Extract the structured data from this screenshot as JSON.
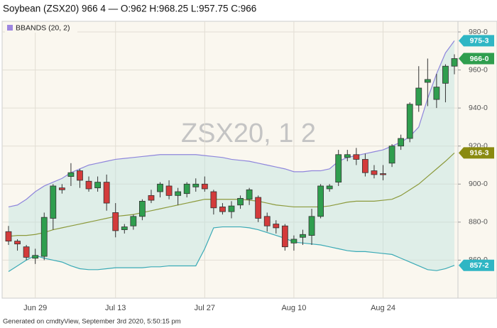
{
  "chart_data": {
    "type": "candlestick",
    "title": "Soybean (ZSX20) 966 4 — O:962 H:968.25 L:957.75 C:966",
    "watermark": "ZSX20, 1 2",
    "footer": "Generated on cmdtyView, September 3rd 2020, 5:50:15 pm",
    "categories": [
      null,
      null,
      null,
      "Jun 29",
      null,
      null,
      null,
      null,
      null,
      null,
      null,
      null,
      "Jul 13",
      null,
      null,
      null,
      null,
      null,
      null,
      null,
      null,
      null,
      "Jul 27",
      null,
      null,
      null,
      null,
      null,
      null,
      null,
      null,
      null,
      "Aug 10",
      null,
      null,
      null,
      null,
      null,
      null,
      null,
      null,
      null,
      "Aug 24",
      null,
      null,
      null,
      null,
      null,
      null,
      null,
      null
    ],
    "open": [
      875,
      870,
      867,
      861,
      862,
      882,
      898,
      904,
      907,
      901.5,
      898,
      901,
      885,
      876,
      878,
      883,
      894,
      896,
      899,
      894,
      895,
      898.5,
      900,
      896,
      888,
      885.5,
      889,
      892,
      893,
      883,
      879,
      878,
      869,
      872,
      873,
      883,
      897.5,
      901,
      914,
      915.5,
      913,
      907,
      905.5,
      911,
      920,
      924,
      941.5,
      953.5,
      944.5,
      953,
      962
    ],
    "high": [
      878,
      871,
      868,
      866,
      885,
      900,
      900,
      911,
      908,
      904,
      904,
      905,
      890,
      879,
      884,
      892,
      897,
      901,
      902,
      898,
      901,
      903,
      904,
      897,
      890,
      891,
      894,
      898,
      894,
      885,
      881,
      879,
      873,
      876,
      887,
      900,
      900,
      918,
      918,
      919,
      916,
      910,
      910,
      921,
      926,
      943,
      962,
      966,
      958,
      963,
      968.25
    ],
    "low": [
      868,
      865,
      860,
      858,
      860,
      876,
      895,
      899,
      898,
      896,
      896,
      886,
      872,
      874,
      876,
      881,
      890,
      893,
      892,
      889,
      893,
      896,
      896,
      884,
      884,
      882,
      887,
      889,
      880,
      875,
      874,
      865,
      865,
      868,
      868,
      882,
      896,
      899,
      912,
      910,
      904,
      903,
      902,
      909,
      918,
      922,
      938,
      941,
      940,
      943,
      957.75
    ],
    "close": [
      870,
      868.5,
      861.5,
      862.5,
      882.5,
      899,
      897,
      906,
      902,
      897.5,
      901,
      890,
      875.5,
      877.5,
      883,
      891,
      891.5,
      900,
      894,
      896,
      900,
      900,
      897.5,
      887.5,
      885.5,
      888.5,
      892.5,
      897,
      882,
      878,
      877,
      867,
      871,
      873.5,
      883,
      899,
      899,
      915.5,
      915.5,
      913,
      906,
      905,
      905,
      920,
      924,
      942,
      950.5,
      955,
      951,
      962,
      966
    ],
    "up_color": "#2f9e4e",
    "down_color": "#d33b3b",
    "indicator": {
      "name": "BBANDS (20, 2)",
      "color": "#9d86e0",
      "series": [
        {
          "color": "#8f86dc",
          "values": [
            888,
            889,
            892,
            896,
            899,
            901,
            903,
            906,
            908,
            910,
            911,
            912,
            913,
            913.5,
            914,
            914.5,
            915,
            915.5,
            915.5,
            915.5,
            915.5,
            915.5,
            915,
            914.5,
            914,
            913,
            912.5,
            912,
            911,
            910,
            909,
            908,
            906.5,
            906.5,
            907,
            907,
            908,
            912,
            914,
            915,
            916,
            917,
            918,
            920,
            922,
            925,
            930,
            945,
            958,
            969,
            975.375
          ]
        },
        {
          "color": "#8c9a3c",
          "values": [
            872.5,
            873,
            873,
            873.5,
            874.5,
            876,
            877,
            878,
            879,
            880,
            881,
            882,
            883,
            883.5,
            884,
            885,
            886,
            887,
            888,
            889,
            890,
            891,
            892,
            892,
            892,
            892,
            892,
            891.5,
            891,
            890,
            889,
            888.5,
            888,
            888,
            888,
            888,
            888.5,
            889.5,
            890.5,
            891,
            891,
            891,
            891.5,
            892,
            894,
            897,
            900,
            904,
            908,
            912,
            916.375
          ]
        },
        {
          "color": "#3aaab6",
          "values": [
            854,
            857,
            860,
            862.5,
            861,
            860,
            859,
            857,
            855.5,
            855,
            855,
            855.5,
            856,
            856,
            856,
            856,
            856.5,
            856.5,
            857,
            857,
            857,
            857,
            866,
            877,
            877.5,
            877.5,
            877.5,
            877,
            876,
            874.5,
            873,
            871.5,
            869.5,
            869,
            868.5,
            868,
            867,
            866,
            865,
            864.5,
            864.5,
            864,
            863.5,
            863,
            861,
            859,
            857,
            855,
            854.5,
            855.5,
            857.25
          ]
        }
      ]
    },
    "badges": [
      {
        "value": 975.375,
        "label": "975-3",
        "color": "#2fb6c4"
      },
      {
        "value": 966,
        "label": "966-0",
        "color": "#2f9e4e"
      },
      {
        "value": 916.375,
        "label": "916-3",
        "color": "#8a8a10"
      },
      {
        "value": 857.25,
        "label": "857-2",
        "color": "#2fb6c4"
      }
    ],
    "ylim": [
      840,
      985.6
    ],
    "yticks": [
      {
        "value": 860,
        "label": "860-0"
      },
      {
        "value": 880,
        "label": "880-0"
      },
      {
        "value": 900,
        "label": "900-0"
      },
      {
        "value": 920,
        "label": "920-0"
      },
      {
        "value": 940,
        "label": "940-0"
      },
      {
        "value": 960,
        "label": "960-0"
      },
      {
        "value": 980,
        "label": "980-0"
      }
    ],
    "grid": true
  }
}
